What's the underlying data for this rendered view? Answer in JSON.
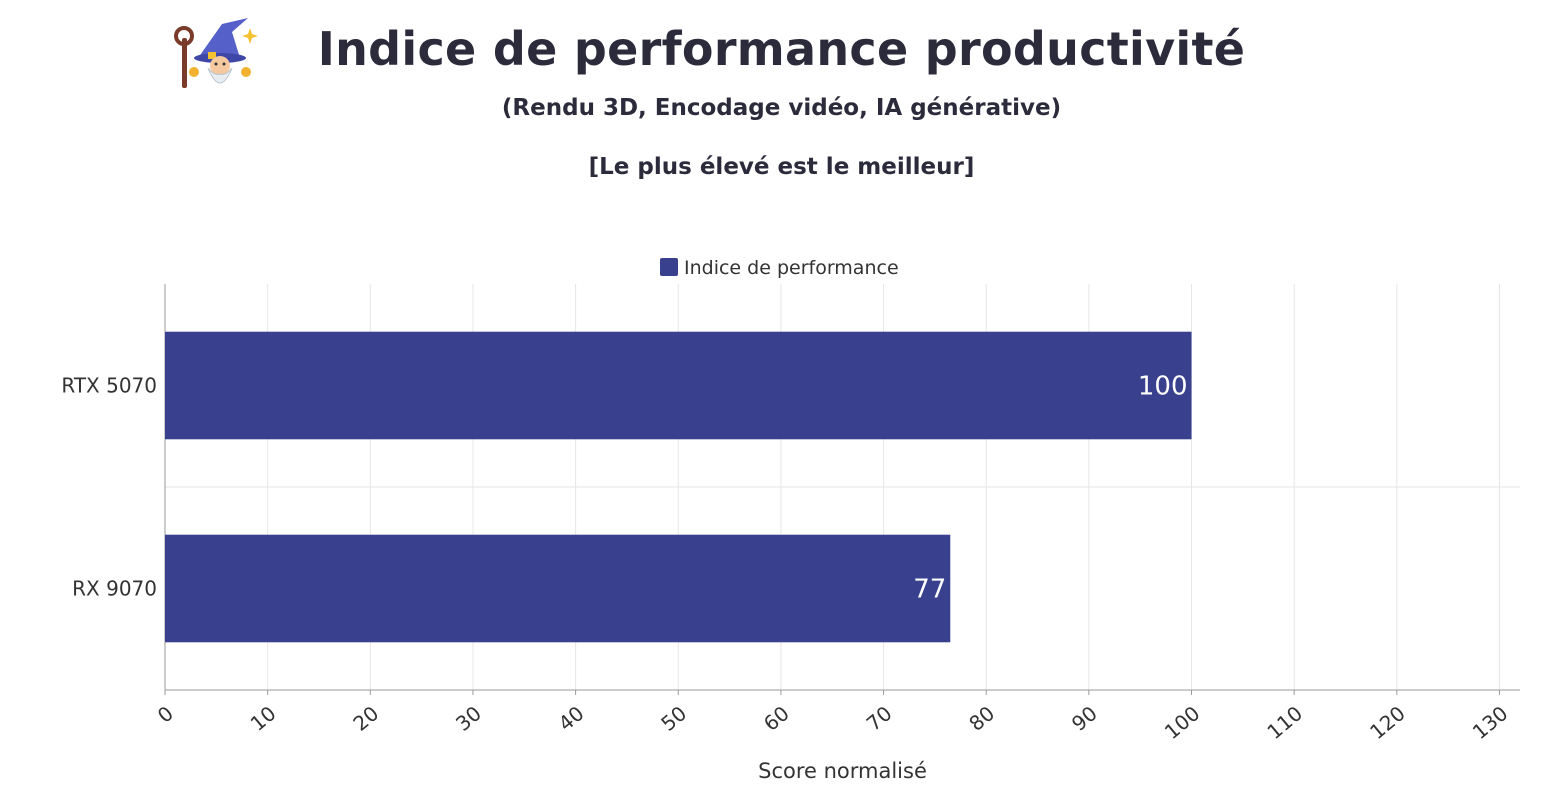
{
  "header": {
    "logo_icon": "wizard-icon",
    "title": "Indice de performance productivité",
    "subtitle": "(Rendu 3D, Encodage vidéo, IA générative)",
    "note": "[Le plus élevé est le meilleur]"
  },
  "chart_data": {
    "type": "bar",
    "orientation": "horizontal",
    "categories": [
      "RTX 5070",
      "RX 9070"
    ],
    "series": [
      {
        "name": "Indice de performance",
        "color": "#39418f",
        "values": [
          100,
          76.5
        ],
        "labels": [
          "100",
          "77"
        ]
      }
    ],
    "xlabel": "Score normalisé",
    "ylabel": "",
    "xlim": [
      0,
      132
    ],
    "xticks": [
      0,
      10,
      20,
      30,
      40,
      50,
      60,
      70,
      80,
      90,
      100,
      110,
      120,
      130
    ],
    "grid": true,
    "legend": "top-center"
  }
}
